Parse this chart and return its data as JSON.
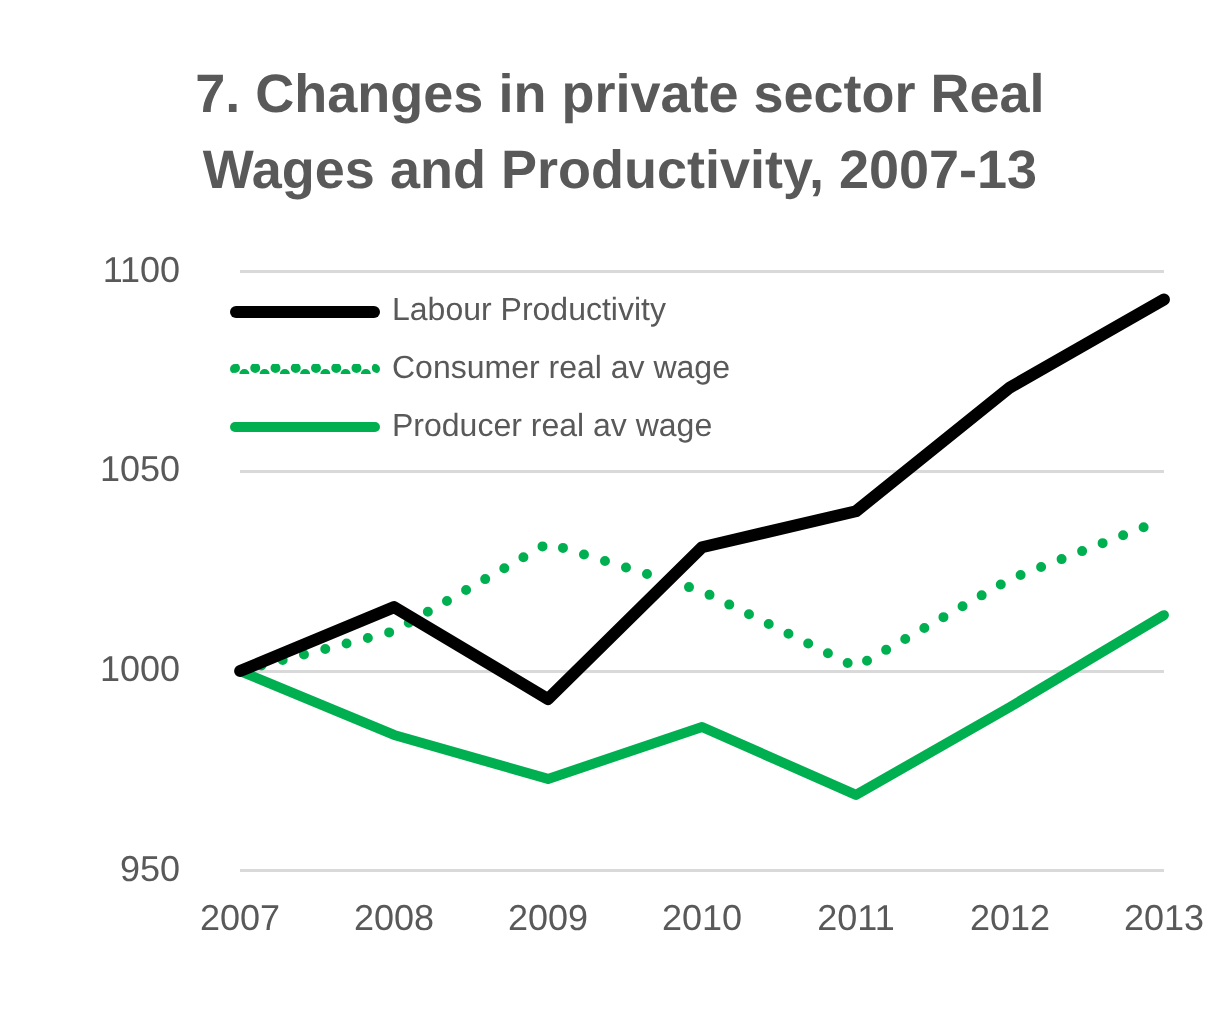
{
  "chart_data": {
    "type": "line",
    "title": "7. Changes in private sector Real Wages and Productivity, 2007-13",
    "categories": [
      "2007",
      "2008",
      "2009",
      "2010",
      "2011",
      "2012",
      "2013"
    ],
    "series": [
      {
        "name": "Labour Productivity",
        "color": "#000000",
        "line_style": "solid",
        "values": [
          1000,
          1016,
          993,
          1031,
          1040,
          1071,
          1093
        ]
      },
      {
        "name": "Consumer real av wage",
        "color": "#00b050",
        "line_style": "dotted",
        "values": [
          1000,
          1010,
          1032,
          1020,
          1001,
          1023,
          1038
        ]
      },
      {
        "name": "Producer real av wage",
        "color": "#00b050",
        "line_style": "solid",
        "values": [
          1000,
          984,
          973,
          986,
          969,
          991,
          1014
        ]
      }
    ],
    "ylim": [
      950,
      1100
    ],
    "yticks": [
      950,
      1000,
      1050,
      1100
    ],
    "grid": "y",
    "legend": "top left",
    "marker": "none"
  }
}
